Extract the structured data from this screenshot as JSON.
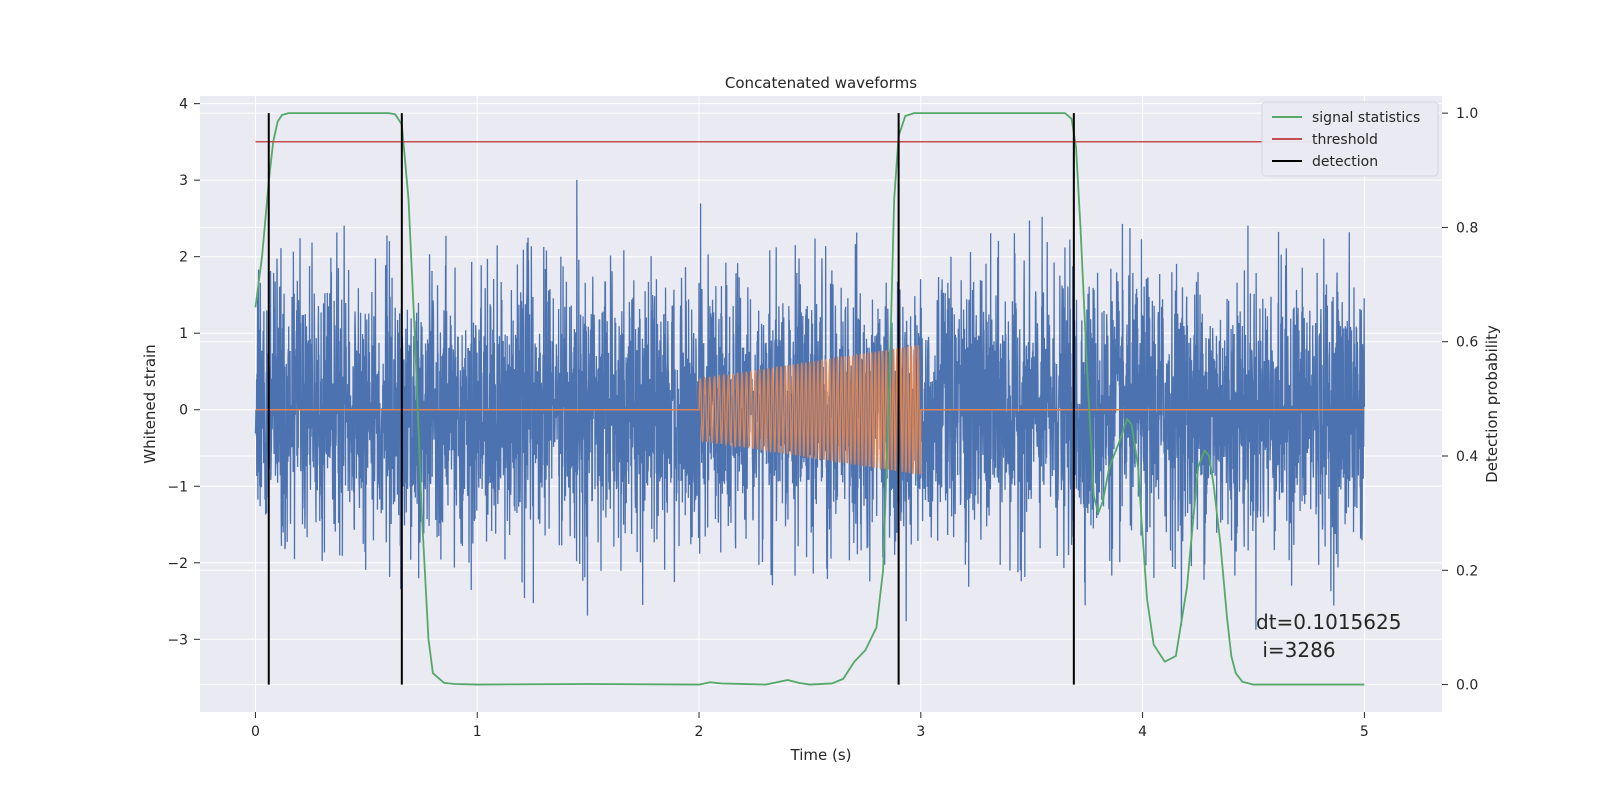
{
  "chart_data": {
    "type": "line",
    "title": "Concatenated waveforms",
    "xlabel": "Time (s)",
    "ylabel": "Whitened strain",
    "y2label": "Detection probability",
    "xlim": [
      -0.25,
      5.35
    ],
    "ylim": [
      -3.95,
      4.1
    ],
    "y2lim": [
      -0.048,
      1.03
    ],
    "x_ticks": [
      0,
      1,
      2,
      3,
      4,
      5
    ],
    "x_tick_labels": [
      "0",
      "1",
      "2",
      "3",
      "4",
      "5"
    ],
    "y_ticks": [
      -3,
      -2,
      -1,
      0,
      1,
      2,
      3,
      4
    ],
    "y_tick_labels": [
      "−3",
      "−2",
      "−1",
      "0",
      "1",
      "2",
      "3",
      "4"
    ],
    "y2_ticks": [
      0.0,
      0.2,
      0.4,
      0.6,
      0.8,
      1.0
    ],
    "y2_tick_labels": [
      "0.0",
      "0.2",
      "0.4",
      "0.6",
      "0.8",
      "1.0"
    ],
    "grid": true,
    "legend_position": "top-right",
    "legend": [
      {
        "label": "signal statistics",
        "color": "#55a868"
      },
      {
        "label": "threshold",
        "color": "#c44e52"
      },
      {
        "label": "detection",
        "color": "#000000"
      }
    ],
    "series": [
      {
        "role": "strain",
        "color": "#4c72b0",
        "x_range": [
          0,
          5
        ],
        "std": 0.85,
        "axis": "left"
      },
      {
        "role": "injected",
        "color": "#dd8452",
        "x_range": [
          0,
          5
        ],
        "chirp_window": [
          2.0,
          3.0
        ],
        "amplitude_start": 0.4,
        "amplitude_end": 0.85,
        "axis": "left"
      },
      {
        "name": "signal statistics",
        "color": "#55a868",
        "axis": "right",
        "x": [
          0.0,
          0.03,
          0.06,
          0.08,
          0.1,
          0.12,
          0.15,
          0.2,
          0.3,
          0.4,
          0.5,
          0.6,
          0.63,
          0.66,
          0.69,
          0.72,
          0.75,
          0.78,
          0.8,
          0.85,
          0.9,
          1.0,
          1.5,
          2.0,
          2.05,
          2.1,
          2.3,
          2.4,
          2.45,
          2.5,
          2.6,
          2.65,
          2.7,
          2.75,
          2.8,
          2.83,
          2.86,
          2.88,
          2.9,
          2.93,
          2.97,
          3.0,
          3.2,
          3.5,
          3.65,
          3.68,
          3.7,
          3.72,
          3.75,
          3.78,
          3.8,
          3.82,
          3.85,
          3.9,
          3.93,
          3.95,
          3.98,
          4.0,
          4.02,
          4.05,
          4.1,
          4.15,
          4.2,
          4.25,
          4.28,
          4.3,
          4.32,
          4.35,
          4.38,
          4.4,
          4.42,
          4.45,
          4.5,
          4.6,
          5.0
        ],
        "y": [
          0.66,
          0.75,
          0.88,
          0.95,
          0.985,
          0.997,
          1.0,
          1.0,
          1.0,
          1.0,
          1.0,
          1.0,
          0.998,
          0.98,
          0.85,
          0.6,
          0.3,
          0.08,
          0.02,
          0.003,
          0.001,
          0.0,
          0.001,
          0.0,
          0.004,
          0.002,
          0.0,
          0.008,
          0.003,
          0.0,
          0.002,
          0.01,
          0.04,
          0.06,
          0.1,
          0.2,
          0.55,
          0.85,
          0.96,
          0.995,
          1.0,
          1.0,
          1.0,
          1.0,
          1.0,
          0.99,
          0.94,
          0.8,
          0.55,
          0.33,
          0.3,
          0.32,
          0.38,
          0.43,
          0.465,
          0.455,
          0.38,
          0.26,
          0.15,
          0.07,
          0.04,
          0.05,
          0.17,
          0.38,
          0.41,
          0.4,
          0.35,
          0.25,
          0.12,
          0.05,
          0.02,
          0.005,
          0.0,
          0.0,
          0.0
        ]
      },
      {
        "name": "threshold",
        "color": "#c44e52",
        "axis": "right",
        "x": [
          0.0,
          5.0
        ],
        "y": [
          0.95,
          0.95
        ]
      }
    ],
    "detections": [
      0.06,
      0.66,
      2.9,
      3.69
    ],
    "annotations": [
      "dt=0.1015625",
      " i=3286"
    ]
  }
}
